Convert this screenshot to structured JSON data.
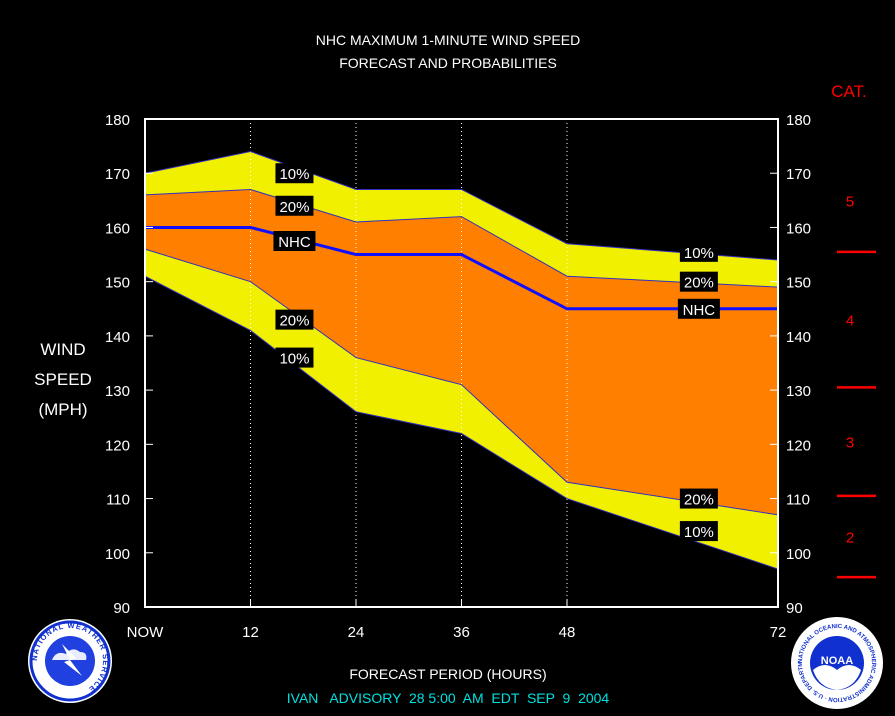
{
  "chart_data": {
    "type": "area",
    "title": "NHC MAXIMUM 1-MINUTE WIND SPEED",
    "subtitle": "FORECAST AND PROBABILITIES",
    "ylabel": [
      "WIND",
      "SPEED",
      "(MPH)"
    ],
    "xlabel": "FORECAST PERIOD (HOURS)",
    "footer": "IVAN   ADVISORY  28 5:00  AM  EDT  SEP  9  2004",
    "ylim": [
      90,
      180
    ],
    "xlim": [
      0,
      72
    ],
    "yticks": [
      90,
      100,
      110,
      120,
      130,
      140,
      150,
      160,
      170,
      180
    ],
    "xticks": [
      {
        "value": 0,
        "label": "NOW"
      },
      {
        "value": 12,
        "label": "12"
      },
      {
        "value": 24,
        "label": "24"
      },
      {
        "value": 36,
        "label": "36"
      },
      {
        "value": 48,
        "label": "48"
      },
      {
        "value": 72,
        "label": "72"
      }
    ],
    "grid_x": [
      12,
      24,
      36,
      48
    ],
    "x": [
      0,
      12,
      24,
      36,
      48,
      72
    ],
    "series": [
      {
        "name": "10%",
        "values": [
          170,
          174,
          167,
          167,
          157,
          154
        ],
        "color": "#f0f000"
      },
      {
        "name": "20%",
        "values": [
          166,
          167,
          161,
          162,
          151,
          149
        ],
        "color": "#ff8000"
      },
      {
        "name": "NHC",
        "values": [
          160,
          160,
          155,
          155,
          145,
          145
        ],
        "color": "#1010ff"
      },
      {
        "name": "20%",
        "values": [
          156,
          150,
          136,
          131,
          113,
          107
        ],
        "color": "#ff8000"
      },
      {
        "name": "10%",
        "values": [
          151,
          141,
          126,
          122,
          110,
          97
        ],
        "color": "#f0f000"
      }
    ],
    "labels": [
      {
        "text": "10%",
        "x": 17,
        "y": 170
      },
      {
        "text": "20%",
        "x": 17,
        "y": 164
      },
      {
        "text": "NHC",
        "x": 17,
        "y": 157.5
      },
      {
        "text": "20%",
        "x": 17,
        "y": 143
      },
      {
        "text": "10%",
        "x": 17,
        "y": 136
      },
      {
        "text": "10%",
        "x": 63,
        "y": 155.5
      },
      {
        "text": "20%",
        "x": 63,
        "y": 150
      },
      {
        "text": "NHC",
        "x": 63,
        "y": 145
      },
      {
        "text": "20%",
        "x": 63,
        "y": 110
      },
      {
        "text": "10%",
        "x": 63,
        "y": 104
      }
    ],
    "category": {
      "title": "CAT.",
      "boundaries": [
        95.5,
        110.5,
        130.5,
        155.5
      ],
      "labels": [
        {
          "text": "5",
          "y": 165
        },
        {
          "text": "4",
          "y": 143
        },
        {
          "text": "3",
          "y": 120.5
        },
        {
          "text": "2",
          "y": 103
        }
      ]
    }
  },
  "logos": {
    "left": "NATIONAL WEATHER SERVICE",
    "right_center": "NOAA",
    "right_ring": "NATIONAL OCEANIC AND ATMOSPHERIC ADMINISTRATION · U.S. DEPARTMENT OF COMMERCE"
  }
}
